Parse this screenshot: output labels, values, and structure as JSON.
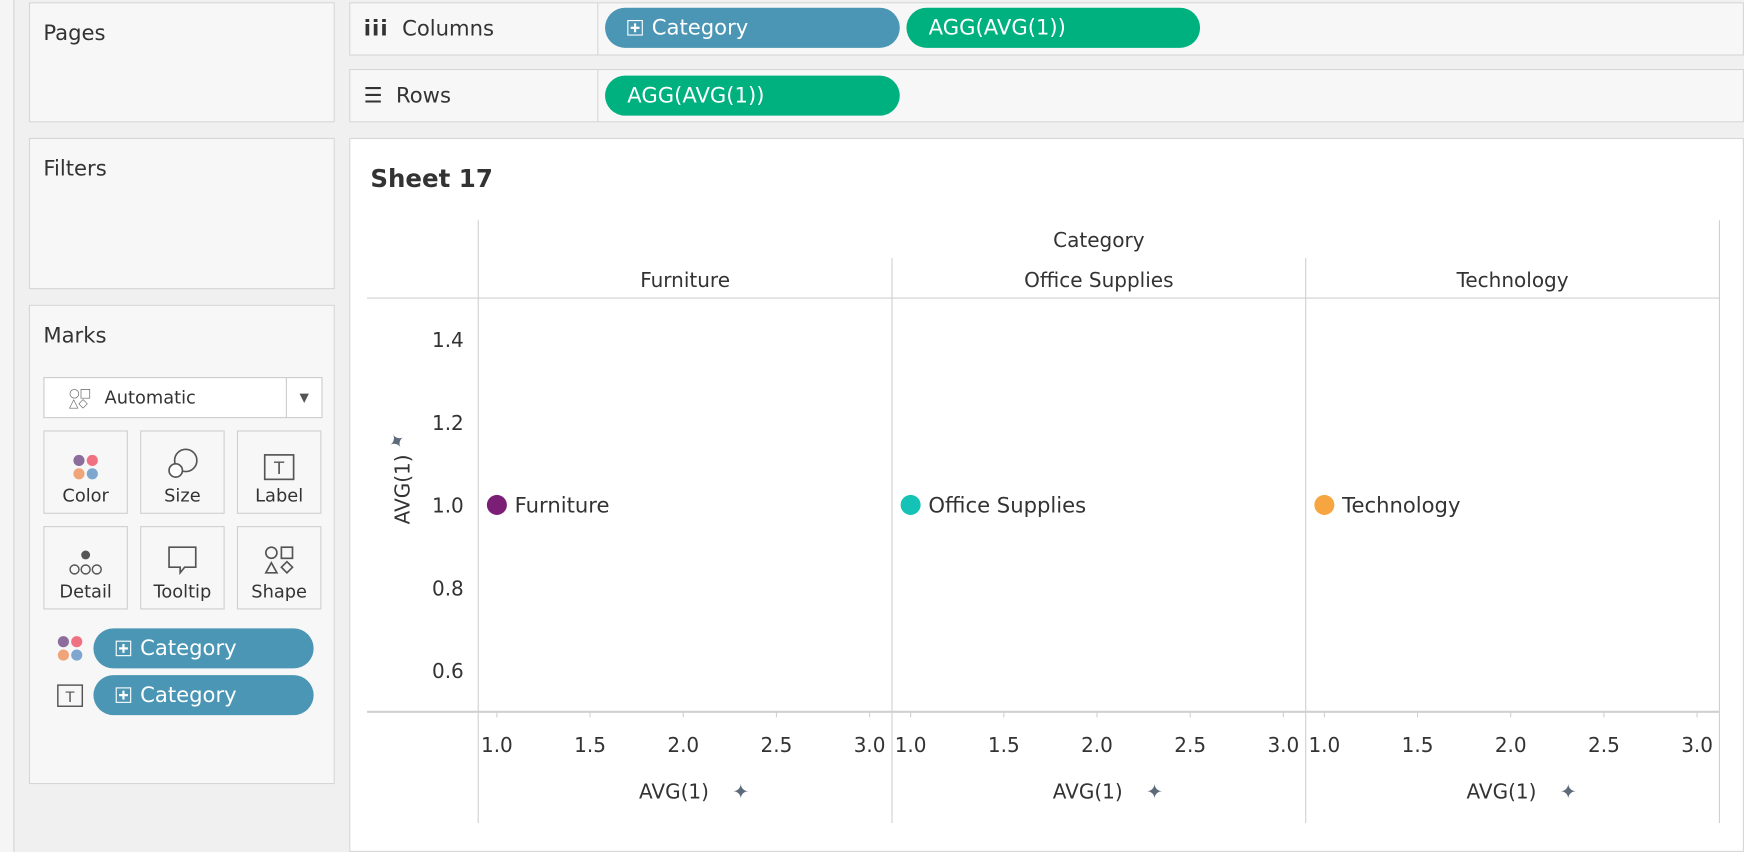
{
  "shelves": {
    "pages": "Pages",
    "filters": "Filters",
    "marks": "Marks",
    "columns": "Columns",
    "rows": "Rows",
    "column_pills": [
      "Category",
      "AGG(AVG(1))"
    ],
    "row_pills": [
      "AGG(AVG(1))"
    ]
  },
  "marks": {
    "type": "Automatic",
    "cards": [
      "Color",
      "Size",
      "Label",
      "Detail",
      "Tooltip",
      "Shape"
    ],
    "encodings": [
      {
        "icon": "color-icon",
        "field": "Category"
      },
      {
        "icon": "label-icon",
        "field": "Category"
      }
    ]
  },
  "sheet": {
    "title": "Sheet 17"
  },
  "chart_data": {
    "type": "scatter",
    "column_header": "Category",
    "panes": [
      "Furniture",
      "Office Supplies",
      "Technology"
    ],
    "xlabel": "AVG(1)",
    "ylabel": "AVG(1)",
    "xlim": [
      0.9,
      3.12
    ],
    "ylim": [
      0.5,
      1.5
    ],
    "xticks": [
      "1.0",
      "1.5",
      "2.0",
      "2.5",
      "3.0"
    ],
    "yticks": [
      "1.4",
      "1.2",
      "1.0",
      "0.8",
      "0.6"
    ],
    "points": [
      {
        "pane": "Furniture",
        "x": 1.0,
        "y": 1.0,
        "label": "Furniture",
        "color": "#7b1f76"
      },
      {
        "pane": "Office Supplies",
        "x": 1.0,
        "y": 1.0,
        "label": "Office Supplies",
        "color": "#14c3b5"
      },
      {
        "pane": "Technology",
        "x": 1.0,
        "y": 1.0,
        "label": "Technology",
        "color": "#f7a541"
      }
    ]
  }
}
